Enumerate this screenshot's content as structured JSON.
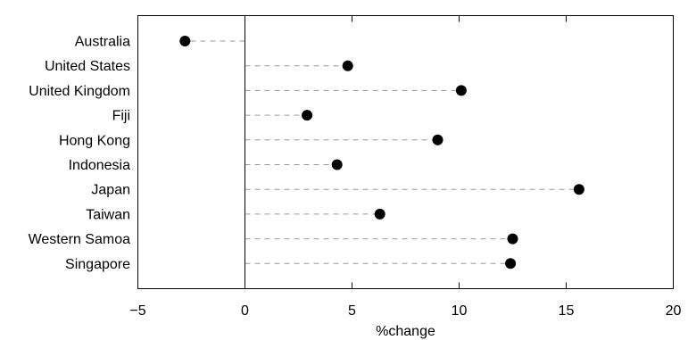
{
  "chart_data": {
    "type": "scatter",
    "style": "dot-plot",
    "title": "",
    "xlabel": "%change",
    "ylabel": "",
    "xlim": [
      -5,
      20
    ],
    "xticks": [
      -5,
      0,
      5,
      10,
      15,
      20
    ],
    "xtick_labels": [
      "−5",
      "0",
      "5",
      "10",
      "15",
      "20"
    ],
    "grid": false,
    "reference_line_x": 0,
    "connector": "dashed line from 0 to each point",
    "colors": {
      "point": "#000000",
      "connector": "#9a9a9a",
      "axis": "#000000"
    },
    "categories": [
      "Australia",
      "United States",
      "United Kingdom",
      "Fiji",
      "Hong Kong",
      "Indonesia",
      "Japan",
      "Taiwan",
      "Western Samoa",
      "Singapore"
    ],
    "values": [
      -2.8,
      4.8,
      10.1,
      2.9,
      9.0,
      4.3,
      15.6,
      6.3,
      12.5,
      12.4
    ]
  }
}
